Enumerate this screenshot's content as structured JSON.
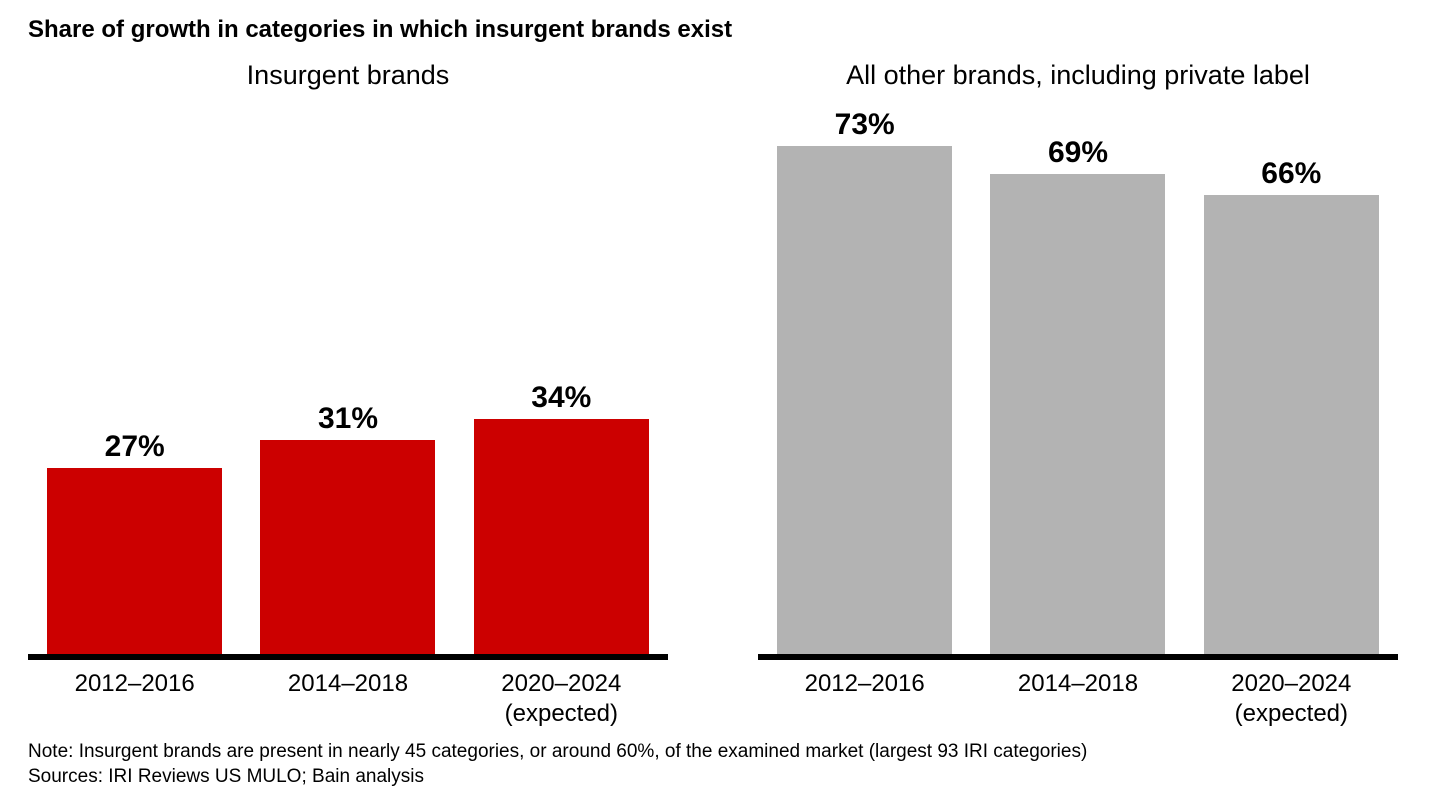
{
  "title": "Share of growth in categories in which insurgent brands exist",
  "chart": {
    "type": "bar",
    "ymax": 80,
    "value_label_fontsize": 30,
    "value_label_fontweight": 700,
    "panel_title_fontsize": 27,
    "xaxis_label_fontsize": 24,
    "baseline_color": "#000000",
    "background_color": "#ffffff",
    "panels": [
      {
        "title": "Insurgent brands",
        "bar_color": "#cc0000",
        "bars": [
          {
            "category": "2012–2016",
            "category_sub": "",
            "value": 27,
            "label": "27%"
          },
          {
            "category": "2014–2018",
            "category_sub": "",
            "value": 31,
            "label": "31%"
          },
          {
            "category": "2020–2024",
            "category_sub": "(expected)",
            "value": 34,
            "label": "34%"
          }
        ]
      },
      {
        "title": "All other brands, including private label",
        "bar_color": "#b3b3b3",
        "bars": [
          {
            "category": "2012–2016",
            "category_sub": "",
            "value": 73,
            "label": "73%"
          },
          {
            "category": "2014–2018",
            "category_sub": "",
            "value": 69,
            "label": "69%"
          },
          {
            "category": "2020–2024",
            "category_sub": "(expected)",
            "value": 66,
            "label": "66%"
          }
        ]
      }
    ]
  },
  "note": "Note: Insurgent brands are present in nearly 45 categories, or around 60%, of the examined market (largest 93 IRI categories)",
  "sources": "Sources: IRI Reviews US MULO; Bain analysis"
}
